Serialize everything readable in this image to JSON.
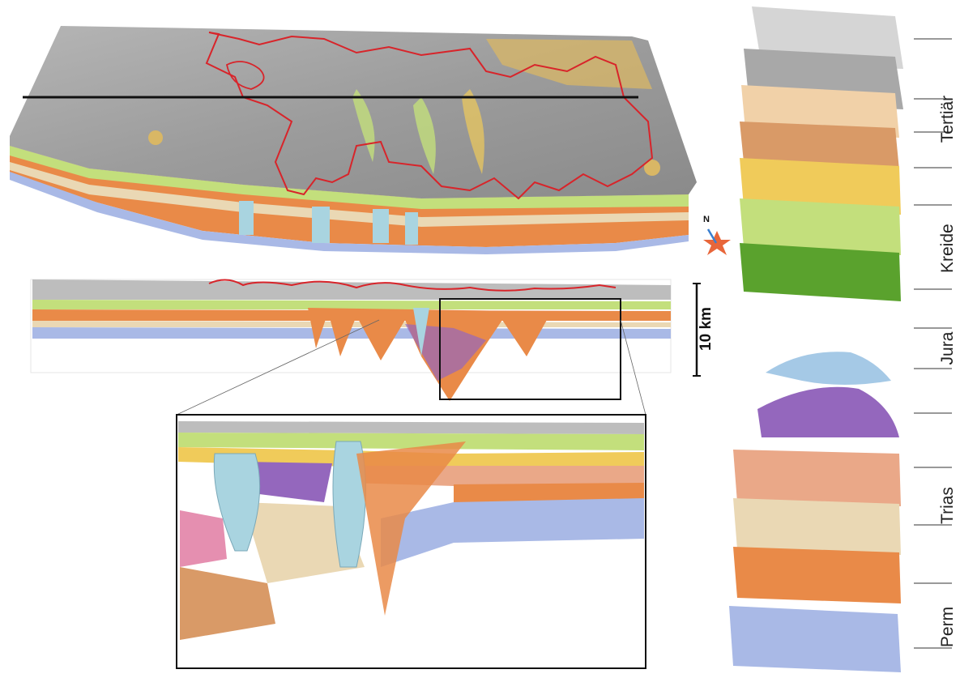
{
  "stratigraphy": {
    "eras": [
      {
        "id": "tertiaer",
        "label": "Tertiär"
      },
      {
        "id": "kreide",
        "label": "Kreide"
      },
      {
        "id": "jura",
        "label": "Jura"
      },
      {
        "id": "trias",
        "label": "Trias"
      },
      {
        "id": "perm",
        "label": "Perm"
      }
    ]
  },
  "compass": {
    "north_label": "N"
  },
  "scale_bar": {
    "label": "10 km"
  },
  "colors": {
    "surface_grey": "#9a9a9a",
    "boundary_red": "#d8242a",
    "salt_blue": "#a9d4e0",
    "perm_blue": "#a9b9e6",
    "orange": "#e98a48",
    "sand": "#ead8b4",
    "salmon": "#eaa888",
    "purple": "#9467bd",
    "green_light": "#c3df7c",
    "green_dark": "#5aa22d",
    "yellow": "#f0cb5a",
    "tan": "#d99a67"
  }
}
